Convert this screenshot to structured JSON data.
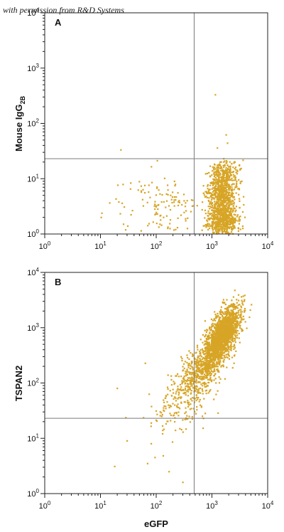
{
  "credit": "with permission from R&D Systems",
  "colors": {
    "events": "#D7A526",
    "quadrant": "#7a7a7a",
    "frame": "#222222"
  },
  "chart_data": [
    {
      "type": "scatter",
      "panel": "A",
      "title": "",
      "xlabel": "",
      "ylabel": "Mouse IgG",
      "ylabel_subscript": "2B",
      "xscale": "log",
      "yscale": "log",
      "xlim": [
        1,
        10000
      ],
      "ylim": [
        1,
        10000
      ],
      "xticks": [
        1,
        10,
        100,
        1000,
        10000
      ],
      "yticks": [
        1,
        10,
        100,
        1000,
        10000
      ],
      "quadrant_gate": {
        "x": 480,
        "y": 23
      },
      "grid": false,
      "populations": [
        {
          "center": [
            1550,
            1.9
          ],
          "spread": [
            0.13,
            0.18
          ],
          "count": 700
        },
        {
          "center": [
            1500,
            5.5
          ],
          "spread": [
            0.13,
            0.13
          ],
          "count": 420
        },
        {
          "center": [
            1700,
            12
          ],
          "spread": [
            0.12,
            0.12
          ],
          "count": 260
        },
        {
          "center": [
            170,
            3.2
          ],
          "spread": [
            0.28,
            0.3
          ],
          "count": 110
        },
        {
          "center": [
            40,
            2.5
          ],
          "spread": [
            0.35,
            0.3
          ],
          "count": 25
        }
      ],
      "outliers": [
        [
          1150,
          330
        ],
        [
          1800,
          62
        ],
        [
          1250,
          36
        ],
        [
          1900,
          44
        ]
      ]
    },
    {
      "type": "scatter",
      "panel": "B",
      "title": "",
      "xlabel": "eGFP",
      "ylabel": "TSPAN2",
      "xscale": "log",
      "yscale": "log",
      "xlim": [
        1,
        10000
      ],
      "ylim": [
        1,
        10000
      ],
      "xticks": [
        1,
        10,
        100,
        1000,
        10000
      ],
      "yticks": [
        1,
        10,
        100,
        1000,
        10000
      ],
      "quadrant_gate": {
        "x": 480,
        "y": 23
      },
      "grid": false,
      "populations": [
        {
          "center": [
            1500,
            700
          ],
          "spread": [
            0.16,
            0.26
          ],
          "count": 1900,
          "correlation": 0.65
        },
        {
          "center": [
            650,
            170
          ],
          "spread": [
            0.22,
            0.25
          ],
          "count": 520,
          "correlation": 0.55
        },
        {
          "center": [
            250,
            40
          ],
          "spread": [
            0.3,
            0.3
          ],
          "count": 170,
          "correlation": 0.4
        }
      ],
      "outliers": [
        [
          95,
          4.5
        ],
        [
          70,
          3.5
        ],
        [
          170,
          2.5
        ],
        [
          18,
          3.1
        ],
        [
          30,
          9
        ],
        [
          20,
          80
        ],
        [
          300,
          1.6
        ]
      ]
    }
  ]
}
